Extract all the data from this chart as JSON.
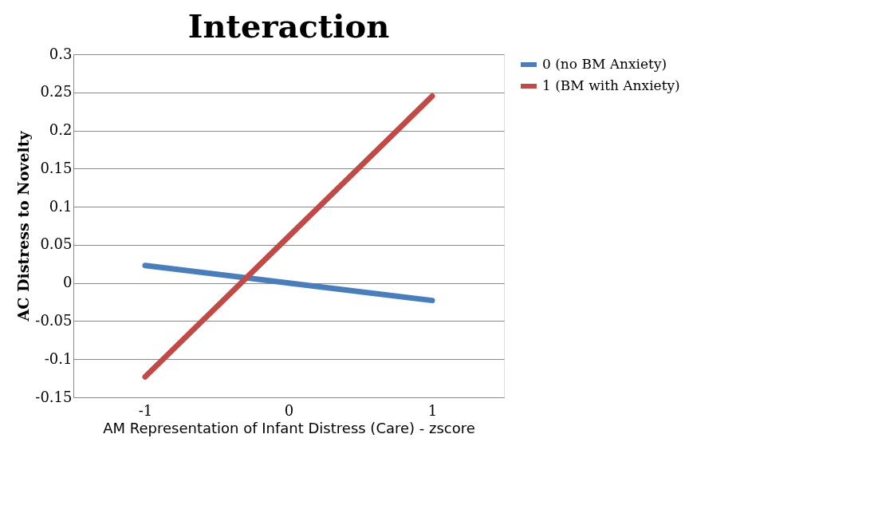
{
  "chart_data": {
    "type": "line",
    "title": "Interaction",
    "xlabel": "AM Representation of Infant Distress (Care) - zscore",
    "ylabel": "AC Distress to Novelty",
    "categories": [
      "-1",
      "0",
      "1"
    ],
    "series": [
      {
        "name": "0 (no BM Anxiety)",
        "color": "#4a7ebb",
        "values": [
          0.023,
          0.0,
          -0.023
        ]
      },
      {
        "name": "1 (BM with Anxiety)",
        "color": "#be4b48",
        "values": [
          -0.123,
          0.061,
          0.245
        ]
      }
    ],
    "ylim": [
      -0.15,
      0.3
    ],
    "yticks": [
      -0.15,
      -0.1,
      -0.05,
      0,
      0.05,
      0.1,
      0.15,
      0.2,
      0.25,
      0.3
    ],
    "grid": "y",
    "legend": "right",
    "marker": "none",
    "line_style": "solid"
  }
}
